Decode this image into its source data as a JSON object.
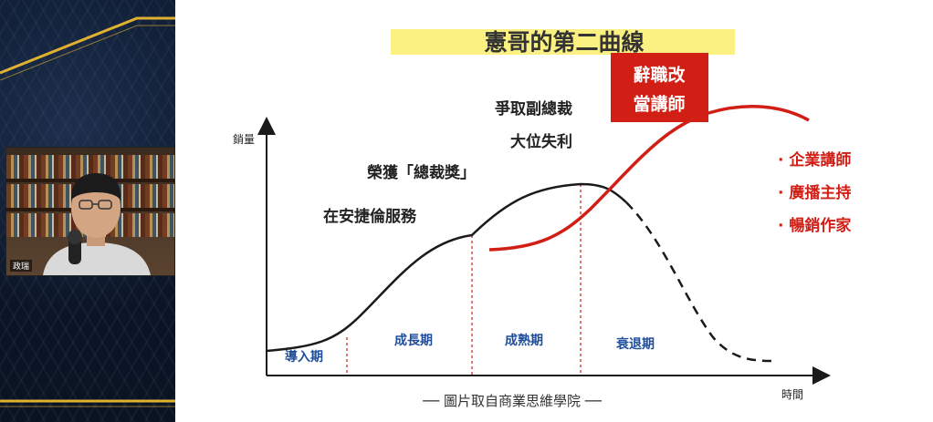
{
  "slide": {
    "title": "憲哥的第二曲線",
    "y_axis_label": "銷量",
    "x_axis_label": "時間",
    "source": "── 圖片取自商業思維學院 ──",
    "stages": [
      "導入期",
      "成長期",
      "成熟期",
      "衰退期"
    ],
    "milestones": [
      "在安捷倫服務",
      "榮獲「總裁獎」",
      "爭取副總裁",
      "大位失利"
    ],
    "red_box": [
      "辭職改",
      "當講師"
    ],
    "bullets": [
      "· 企業講師",
      "· 廣播主持",
      "· 暢銷作家"
    ],
    "colors": {
      "highlight": "#fbf082",
      "accent_red": "#d11f16",
      "stage_label": "#1f4e9c",
      "curve": "#1a1a1a"
    }
  },
  "webcam": {
    "name_tag": "政瑞"
  }
}
